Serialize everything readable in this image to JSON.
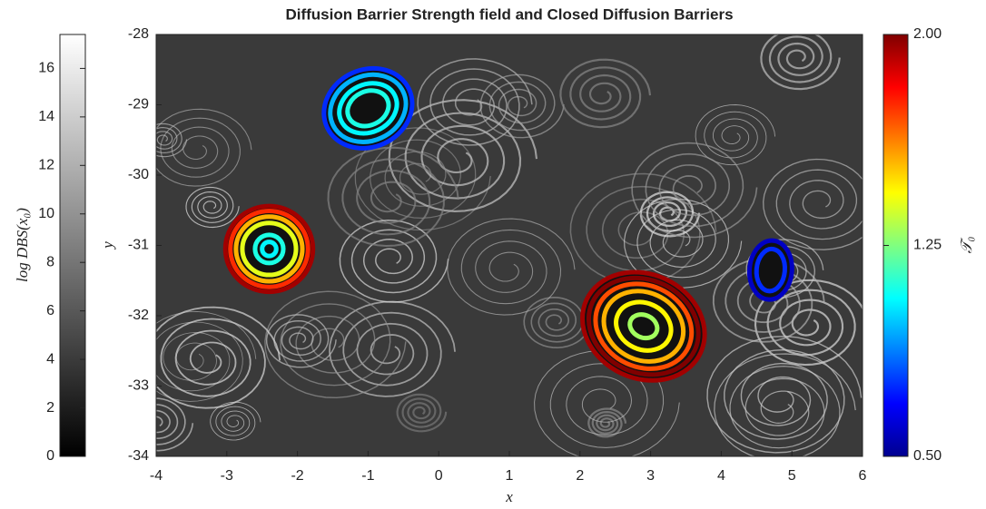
{
  "chart_data": {
    "type": "heatmap",
    "title": "Diffusion Barrier Strength field and Closed Diffusion Barriers",
    "xlabel": "x",
    "ylabel": "y",
    "xlim": [
      -4,
      6
    ],
    "ylim": [
      -34,
      -28
    ],
    "xticks": [
      -4,
      -3,
      -2,
      -1,
      0,
      1,
      2,
      3,
      4,
      5,
      6
    ],
    "yticks": [
      -34,
      -33,
      -32,
      -31,
      -30,
      -29,
      -28
    ],
    "field_colorbar": {
      "label": "log DBS(x₀)",
      "lim": [
        0,
        17.4
      ],
      "ticks": [
        0,
        2,
        4,
        6,
        8,
        10,
        12,
        14,
        16
      ]
    },
    "barrier_colorbar": {
      "label": "𝒯₀",
      "lim": [
        0.5,
        2.0
      ],
      "ticks": [
        {
          "value": 0.5,
          "label": "0.50"
        },
        {
          "value": 1.25,
          "label": "1.25"
        },
        {
          "value": 2.0,
          "label": "2.00"
        }
      ]
    },
    "barriers": [
      {
        "x": -1.0,
        "y": -29.05,
        "tilt": -25,
        "rings": [
          {
            "rx": 0.64,
            "ry": 0.55,
            "t0": 0.75
          },
          {
            "rx": 0.55,
            "ry": 0.46,
            "t0": 0.95
          },
          {
            "rx": 0.42,
            "ry": 0.34,
            "t0": 1.05
          },
          {
            "rx": 0.3,
            "ry": 0.24,
            "t0": 1.1
          }
        ]
      },
      {
        "x": -2.4,
        "y": -31.05,
        "tilt": 0,
        "rings": [
          {
            "rx": 0.62,
            "ry": 0.61,
            "t0": 1.95
          },
          {
            "rx": 0.55,
            "ry": 0.54,
            "t0": 1.75
          },
          {
            "rx": 0.47,
            "ry": 0.46,
            "t0": 1.55
          },
          {
            "rx": 0.38,
            "ry": 0.37,
            "t0": 1.4
          },
          {
            "rx": 0.2,
            "ry": 0.2,
            "t0": 1.1
          },
          {
            "rx": 0.1,
            "ry": 0.1,
            "t0": 1.05
          }
        ]
      },
      {
        "x": 2.9,
        "y": -32.15,
        "tilt": 25,
        "rings": [
          {
            "rx": 0.89,
            "ry": 0.74,
            "t0": 1.95
          },
          {
            "rx": 0.8,
            "ry": 0.66,
            "t0": 2.0
          },
          {
            "rx": 0.7,
            "ry": 0.58,
            "t0": 1.7
          },
          {
            "rx": 0.58,
            "ry": 0.48,
            "t0": 1.55
          },
          {
            "rx": 0.4,
            "ry": 0.33,
            "t0": 1.45
          },
          {
            "rx": 0.2,
            "ry": 0.16,
            "t0": 1.3
          }
        ]
      },
      {
        "x": 4.7,
        "y": -31.35,
        "tilt": 5,
        "rings": [
          {
            "rx": 0.3,
            "ry": 0.42,
            "t0": 0.6
          },
          {
            "rx": 0.2,
            "ry": 0.3,
            "t0": 0.75
          }
        ]
      }
    ]
  }
}
